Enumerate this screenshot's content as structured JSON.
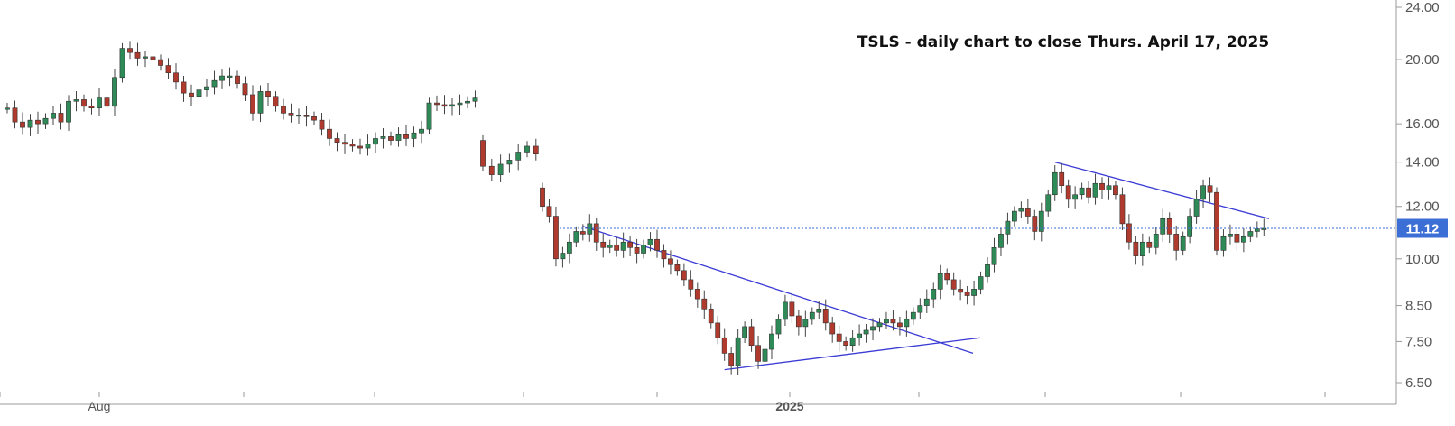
{
  "chart_data": {
    "type": "candlestick",
    "title": "TSLS - daily chart to close Thurs. April 17, 2025",
    "xlabel": "",
    "ylabel": "",
    "y_scale": "log",
    "ylim": [
      6.5,
      24.0
    ],
    "y_ticks": [
      "24.00",
      "20.00",
      "16.00",
      "14.00",
      "12.00",
      "10.00",
      "8.50",
      "7.50",
      "6.50"
    ],
    "x_ticks": [
      "Aug",
      "",
      "",
      "",
      "",
      "",
      "",
      "",
      "2025",
      "",
      "",
      "",
      "",
      ""
    ],
    "last_price": 11.12,
    "last_price_label": "11.12",
    "colors": {
      "up": "#2e8b57",
      "down": "#b03a2e",
      "trendline": "#3b3bd6",
      "price_line": "#3b6fd6",
      "price_label_bg": "#3b6fd6"
    },
    "segments": [
      {
        "name": "",
        "start_open": 16.9,
        "closes": [
          16.9,
          16.1,
          15.8,
          16.2,
          16.0,
          16.3,
          16.6,
          16.1,
          17.3,
          17.4,
          17.0,
          16.9,
          17.5,
          17.0,
          18.8,
          20.8,
          20.5,
          20.1,
          20.2,
          20.0,
          19.6,
          19.1,
          18.5,
          17.8,
          17.6,
          18.0,
          18.2,
          18.6,
          18.9,
          18.9,
          18.4,
          17.7,
          16.6,
          17.9,
          17.6,
          17.0,
          16.6,
          16.5,
          16.5,
          16.4,
          16.2,
          15.7,
          15.2,
          15.0,
          14.9,
          14.8,
          14.7,
          14.9,
          15.2,
          15.3,
          15.1,
          15.4,
          15.2,
          15.5,
          15.7,
          17.2,
          17.1,
          17.0,
          17.1,
          17.2,
          17.3,
          17.5
        ]
      },
      {
        "name": "",
        "start_open": 15.1,
        "closes": [
          13.8,
          13.4,
          13.9,
          14.1,
          14.5,
          14.8,
          14.4
        ]
      },
      {
        "name": "",
        "start_open": 12.8,
        "closes": [
          12.0,
          11.6,
          10.0,
          10.2,
          10.6,
          11.0,
          10.9,
          11.3,
          10.6,
          10.4,
          10.5,
          10.3,
          10.6,
          10.4,
          10.2,
          10.5,
          10.7,
          10.3,
          10.0,
          9.8,
          9.6,
          9.3,
          9.0,
          8.7,
          8.4,
          8.0,
          7.6,
          7.2,
          6.9,
          7.6,
          7.9,
          7.4,
          7.0,
          7.3,
          7.7,
          8.1,
          8.6,
          8.2,
          7.9,
          8.1,
          8.3,
          8.4,
          8.0,
          7.7,
          7.5,
          7.4,
          7.6,
          7.7,
          7.8,
          7.9,
          8.0,
          8.1,
          8.0,
          7.9,
          8.1,
          8.3,
          8.5,
          8.7,
          9.0,
          9.5,
          9.3,
          9.0,
          8.9,
          8.8,
          9.0,
          9.4,
          9.8,
          10.4,
          10.9,
          11.4,
          11.8,
          11.9,
          11.6,
          11.0,
          11.8,
          12.5,
          13.5,
          12.9,
          12.3,
          12.5,
          12.8,
          12.4,
          13.0,
          12.7,
          12.9,
          12.5,
          11.3,
          10.6,
          10.1,
          10.6,
          10.4,
          10.9,
          11.5,
          10.9,
          10.3,
          10.8,
          11.6,
          12.3,
          12.9,
          12.6,
          10.3,
          10.8,
          10.9,
          10.6,
          10.8,
          11.0,
          11.1,
          11.12
        ]
      }
    ],
    "trendlines": [
      {
        "from": [
          0,
          11.2
        ],
        "to": [
          1,
          7.2
        ]
      },
      {
        "from": [
          0,
          6.8
        ],
        "to": [
          1,
          7.6
        ]
      },
      {
        "from": [
          0,
          14.0
        ],
        "to": [
          1,
          11.5
        ]
      }
    ]
  }
}
